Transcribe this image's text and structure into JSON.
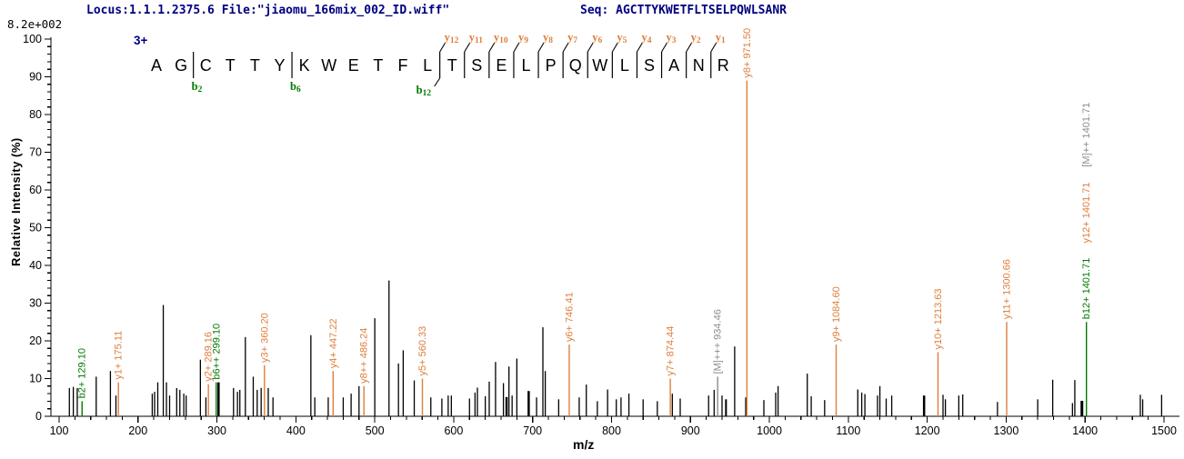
{
  "header": {
    "locus_file": "Locus:1.1.1.2375.6 File:\"jiaomu_166mix_002_ID.wiff\"",
    "seq": "Seq: AGCTTYKWETFLTSELPQWLSANR",
    "max_intensity": "8.2e+002"
  },
  "colors": {
    "navy": "#000080",
    "orange": "#DE7E3C",
    "green": "#007B00",
    "gray": "#8C8C8C",
    "black": "#000000"
  },
  "sequence": {
    "charge": "3+",
    "residues": "AGCTTYKWETFLTSELPQWLSANR",
    "markers": [
      {
        "gap": 2,
        "b": "2"
      },
      {
        "gap": 6,
        "b": "6"
      },
      {
        "gap": 12,
        "b": "12",
        "y": "12"
      },
      {
        "gap": 13,
        "y": "11"
      },
      {
        "gap": 14,
        "y": "10"
      },
      {
        "gap": 15,
        "y": "9"
      },
      {
        "gap": 16,
        "y": "8"
      },
      {
        "gap": 17,
        "y": "7"
      },
      {
        "gap": 18,
        "y": "6"
      },
      {
        "gap": 19,
        "y": "5"
      },
      {
        "gap": 20,
        "y": "4"
      },
      {
        "gap": 21,
        "y": "3"
      },
      {
        "gap": 22,
        "y": "2"
      },
      {
        "gap": 23,
        "y": "1"
      }
    ]
  },
  "chart_data": {
    "type": "bar",
    "subtype": "ms2-fragmentation-spectrum",
    "xlabel": "m/z",
    "ylabel": "Relative Intensity (%)",
    "max_scale_label": "8.2e+002",
    "axes": {
      "x": {
        "min": 100,
        "max": 1500,
        "major": 100,
        "minor": 20
      },
      "y": {
        "min": 0,
        "max": 100,
        "major": 10,
        "minor": 2
      }
    },
    "labeled_peaks": [
      {
        "mz": 129.1,
        "pct": 4,
        "labels": [
          {
            "text": "b2+ 129.10",
            "type": "b"
          }
        ]
      },
      {
        "mz": 175.11,
        "pct": 9,
        "labels": [
          {
            "text": "y1+ 175.11",
            "type": "y"
          }
        ]
      },
      {
        "mz": 289.16,
        "pct": 8.5,
        "labels": [
          {
            "text": "y2+ 289.16",
            "type": "y"
          }
        ]
      },
      {
        "mz": 299.1,
        "pct": 9,
        "labels": [
          {
            "text": "b6++ 299.10",
            "type": "b"
          }
        ]
      },
      {
        "mz": 360.2,
        "pct": 13.5,
        "labels": [
          {
            "text": "y3+ 360.20",
            "type": "y"
          }
        ]
      },
      {
        "mz": 447.22,
        "pct": 12,
        "labels": [
          {
            "text": "y4+ 447.22",
            "type": "y"
          }
        ]
      },
      {
        "mz": 486.24,
        "pct": 8,
        "labels": [
          {
            "text": "y8++ 486.24",
            "type": "y"
          }
        ]
      },
      {
        "mz": 560.33,
        "pct": 10,
        "labels": [
          {
            "text": "y5+ 560.33",
            "type": "y"
          }
        ]
      },
      {
        "mz": 746.41,
        "pct": 19,
        "labels": [
          {
            "text": "y6+ 746.41",
            "type": "y"
          }
        ]
      },
      {
        "mz": 874.44,
        "pct": 10,
        "labels": [
          {
            "text": "y7+ 874.44",
            "type": "y"
          }
        ]
      },
      {
        "mz": 934.46,
        "pct": 10.5,
        "labels": [
          {
            "text": "[M]+++ 934.46",
            "type": "M"
          }
        ]
      },
      {
        "mz": 971.5,
        "pct": 89,
        "labels": [
          {
            "text": "y8+ 971.50",
            "type": "y"
          }
        ]
      },
      {
        "mz": 1084.6,
        "pct": 19,
        "labels": [
          {
            "text": "y9+ 1084.60",
            "type": "y"
          }
        ]
      },
      {
        "mz": 1213.63,
        "pct": 17,
        "labels": [
          {
            "text": "y10+ 1213.63",
            "type": "y"
          }
        ]
      },
      {
        "mz": 1300.66,
        "pct": 25,
        "labels": [
          {
            "text": "y11+ 1300.66",
            "type": "y"
          }
        ]
      },
      {
        "mz": 1401.71,
        "pct": 25,
        "labels": [
          {
            "text": "b12+ 1401.71",
            "type": "b"
          },
          {
            "text": "y12+ 1401.71",
            "type": "y"
          },
          {
            "text": "[M]++ 1401.71",
            "type": "M"
          }
        ]
      }
    ],
    "peaks": [
      [
        113,
        7.5
      ],
      [
        118,
        7.8
      ],
      [
        123,
        7.5
      ],
      [
        147,
        10.5
      ],
      [
        165,
        12
      ],
      [
        172,
        5.5
      ],
      [
        218,
        6
      ],
      [
        221,
        6.5
      ],
      [
        225,
        9
      ],
      [
        232,
        29.5
      ],
      [
        236,
        9
      ],
      [
        240,
        5.5
      ],
      [
        249,
        7.5
      ],
      [
        253,
        7
      ],
      [
        258,
        6
      ],
      [
        261,
        5.5
      ],
      [
        279,
        15
      ],
      [
        286,
        5
      ],
      [
        302,
        9,
        2.5
      ],
      [
        321,
        7.5
      ],
      [
        326,
        6.5
      ],
      [
        329,
        7
      ],
      [
        336,
        21
      ],
      [
        346,
        10.5
      ],
      [
        351,
        7
      ],
      [
        356,
        7.5
      ],
      [
        365,
        7.5
      ],
      [
        371,
        5
      ],
      [
        419,
        21.5
      ],
      [
        424,
        5
      ],
      [
        441,
        5
      ],
      [
        460,
        5
      ],
      [
        470,
        6
      ],
      [
        480,
        8
      ],
      [
        500,
        26
      ],
      [
        518,
        36
      ],
      [
        530,
        14
      ],
      [
        536,
        17.5
      ],
      [
        550,
        9.5
      ],
      [
        571,
        5
      ],
      [
        585,
        4.7
      ],
      [
        593,
        5.5
      ],
      [
        597,
        5.5
      ],
      [
        620,
        4.7
      ],
      [
        627,
        6.3
      ],
      [
        630,
        7.6
      ],
      [
        640,
        5.3
      ],
      [
        645,
        9.2
      ],
      [
        653,
        14.4
      ],
      [
        663,
        8.8
      ],
      [
        667,
        5.1,
        2.5
      ],
      [
        670,
        13.2
      ],
      [
        674,
        5.5
      ],
      [
        680,
        15.3
      ],
      [
        695,
        6.7,
        2.5
      ],
      [
        705,
        5
      ],
      [
        713,
        23.6
      ],
      [
        716,
        12
      ],
      [
        733,
        4.5
      ],
      [
        759,
        5
      ],
      [
        768,
        8.4
      ],
      [
        782,
        4
      ],
      [
        795,
        7.1
      ],
      [
        806,
        4.5
      ],
      [
        812,
        5
      ],
      [
        822,
        6
      ],
      [
        840,
        4.5
      ],
      [
        858,
        4
      ],
      [
        877,
        6
      ],
      [
        887,
        4.7
      ],
      [
        923,
        5.5
      ],
      [
        930,
        7
      ],
      [
        940,
        5.5
      ],
      [
        945,
        4.5,
        2
      ],
      [
        956,
        18.5
      ],
      [
        970,
        5
      ],
      [
        993,
        4.3
      ],
      [
        1008,
        6.3
      ],
      [
        1011,
        8
      ],
      [
        1048,
        11.3
      ],
      [
        1053,
        5.3
      ],
      [
        1070,
        4.3
      ],
      [
        1112,
        7.1
      ],
      [
        1117,
        6.3
      ],
      [
        1121,
        5.9
      ],
      [
        1137,
        5.5
      ],
      [
        1140,
        8
      ],
      [
        1148,
        4.7
      ],
      [
        1155,
        5.5
      ],
      [
        1196,
        5.5,
        2.5
      ],
      [
        1220,
        5.7
      ],
      [
        1223,
        4.5
      ],
      [
        1240,
        5.5
      ],
      [
        1245,
        5.8
      ],
      [
        1289,
        3.8
      ],
      [
        1340,
        4.5
      ],
      [
        1359,
        9.7
      ],
      [
        1384,
        3.5
      ],
      [
        1387,
        9.6
      ],
      [
        1396,
        4.1,
        3
      ],
      [
        1470,
        5.7
      ],
      [
        1473,
        4.5
      ],
      [
        1497,
        5.7
      ]
    ]
  }
}
